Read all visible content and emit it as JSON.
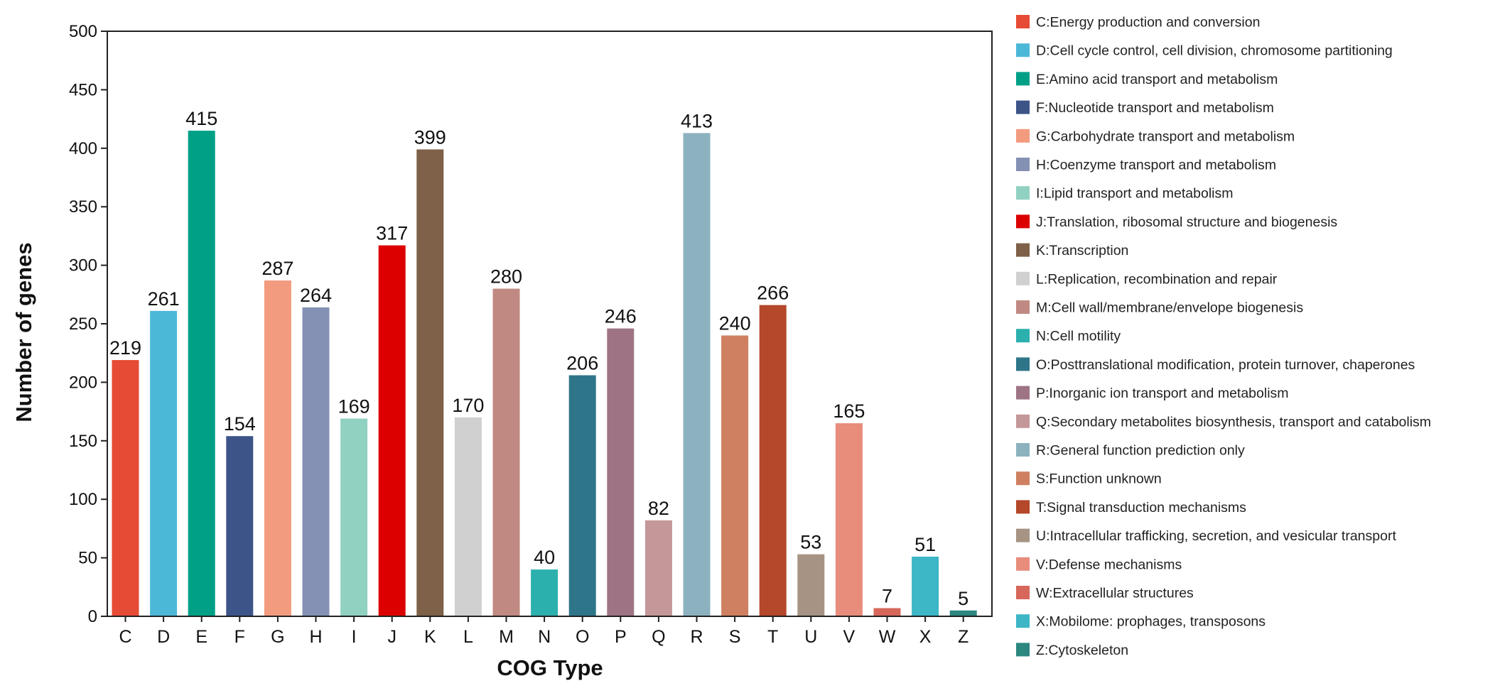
{
  "chart_data": {
    "type": "bar",
    "xlabel": "COG Type",
    "ylabel": "Number of genes",
    "ylim": [
      0,
      500
    ],
    "yticks": [
      0,
      50,
      100,
      150,
      200,
      250,
      300,
      350,
      400,
      450,
      500
    ],
    "grid": false,
    "legend_placement": "right",
    "categories": [
      "C",
      "D",
      "E",
      "F",
      "G",
      "H",
      "I",
      "J",
      "K",
      "L",
      "M",
      "N",
      "O",
      "P",
      "Q",
      "R",
      "S",
      "T",
      "U",
      "V",
      "W",
      "X",
      "Z"
    ],
    "values": [
      219,
      261,
      415,
      154,
      287,
      264,
      169,
      317,
      399,
      170,
      280,
      40,
      206,
      246,
      82,
      413,
      240,
      266,
      53,
      165,
      7,
      51,
      5
    ],
    "colors": [
      "#e64b35",
      "#4cb8d8",
      "#00a087",
      "#3c5488",
      "#f39b7f",
      "#8491b4",
      "#91d1c2",
      "#dc0000",
      "#7e6148",
      "#d0d0d0",
      "#c08a82",
      "#2cb0ad",
      "#2e7589",
      "#9e7485",
      "#c49799",
      "#8cb2bf",
      "#cf8060",
      "#b5472a",
      "#a69383",
      "#e88c7b",
      "#d6675a",
      "#3db6c6",
      "#2b8780"
    ],
    "legend": [
      "C:Energy production and conversion",
      "D:Cell cycle control, cell division, chromosome partitioning",
      "E:Amino acid transport and metabolism",
      "F:Nucleotide transport and metabolism",
      "G:Carbohydrate transport and metabolism",
      "H:Coenzyme transport and metabolism",
      "I:Lipid transport and metabolism",
      "J:Translation, ribosomal structure and biogenesis",
      "K:Transcription",
      "L:Replication, recombination and repair",
      "M:Cell wall/membrane/envelope biogenesis",
      "N:Cell motility",
      "O:Posttranslational modification, protein turnover, chaperones",
      "P:Inorganic ion transport and metabolism",
      "Q:Secondary metabolites biosynthesis, transport and catabolism",
      "R:General function prediction only",
      "S:Function unknown",
      "T:Signal transduction mechanisms",
      "U:Intracellular trafficking, secretion, and vesicular transport",
      "V:Defense mechanisms",
      "W:Extracellular structures",
      "X:Mobilome: prophages, transposons",
      "Z:Cytoskeleton"
    ]
  }
}
